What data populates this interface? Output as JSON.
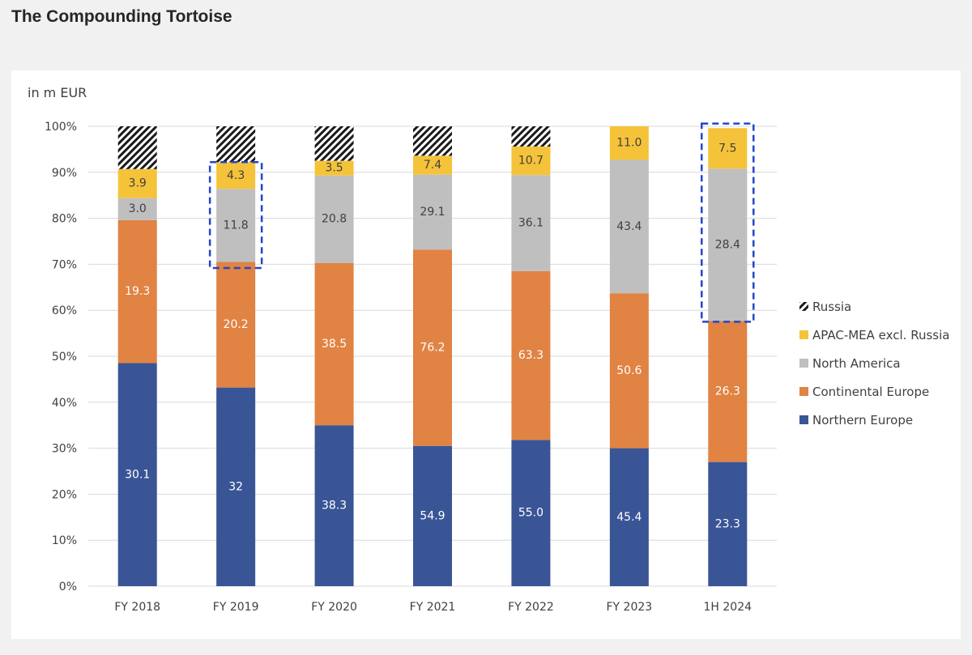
{
  "page": {
    "title": "The Compounding Tortoise"
  },
  "chart_data": {
    "type": "bar",
    "stacked": true,
    "normalized": true,
    "unit_label": "in m EUR",
    "ylim": [
      0,
      100
    ],
    "y_ticks": [
      "0%",
      "10%",
      "20%",
      "30%",
      "40%",
      "50%",
      "60%",
      "70%",
      "80%",
      "90%",
      "100%"
    ],
    "categories": [
      "FY 2018",
      "FY 2019",
      "FY 2020",
      "FY 2021",
      "FY 2022",
      "FY 2023",
      "1H 2024"
    ],
    "grid": true,
    "legend_position": "right",
    "series": [
      {
        "name": "Northern Europe",
        "color": "#3a5596",
        "label_color": "#ffffff",
        "share_pct": [
          48.5,
          43.2,
          35.0,
          30.5,
          31.8,
          30.0,
          27.0
        ],
        "labels": [
          "30.1",
          "32",
          "38.3",
          "54.9",
          "55.0",
          "45.4",
          "23.3"
        ]
      },
      {
        "name": "Continental Europe",
        "color": "#e08343",
        "label_color": "#ffffff",
        "share_pct": [
          31.1,
          27.3,
          35.3,
          42.7,
          36.7,
          33.7,
          30.7
        ],
        "labels": [
          "19.3",
          "20.2",
          "38.5",
          "76.2",
          "63.3",
          "50.6",
          "26.3"
        ]
      },
      {
        "name": "North America",
        "color": "#bfbfbf",
        "label_color": "#404040",
        "share_pct": [
          4.8,
          15.9,
          19.0,
          16.3,
          20.9,
          29.0,
          33.1
        ],
        "labels": [
          "3.0",
          "11.8",
          "20.8",
          "29.1",
          "36.1",
          "43.4",
          "28.4"
        ]
      },
      {
        "name": "APAC-MEA excl. Russia",
        "color": "#f5c33a",
        "label_color": "#404040",
        "share_pct": [
          6.3,
          5.8,
          3.2,
          4.1,
          6.2,
          7.3,
          8.8
        ],
        "labels": [
          "3.9",
          "4.3",
          "3.5",
          "7.4",
          "10.7",
          "11.0",
          "7.5"
        ]
      },
      {
        "name": "Russia",
        "color": "#1a1a1a",
        "pattern": "diagonal-hatch",
        "share_pct": [
          9.3,
          7.8,
          7.5,
          6.4,
          4.4,
          0,
          0
        ],
        "labels": [
          "",
          "",
          "",
          "",
          "",
          "",
          ""
        ]
      }
    ],
    "highlight_boxes": [
      {
        "category": "FY 2019",
        "from_pct": 69.2,
        "to_pct": 92.2,
        "color": "#2446c8",
        "style": "dashed"
      },
      {
        "category": "1H 2024",
        "from_pct": 57.5,
        "to_pct": 100.6,
        "color": "#2446c8",
        "style": "dashed"
      }
    ]
  }
}
